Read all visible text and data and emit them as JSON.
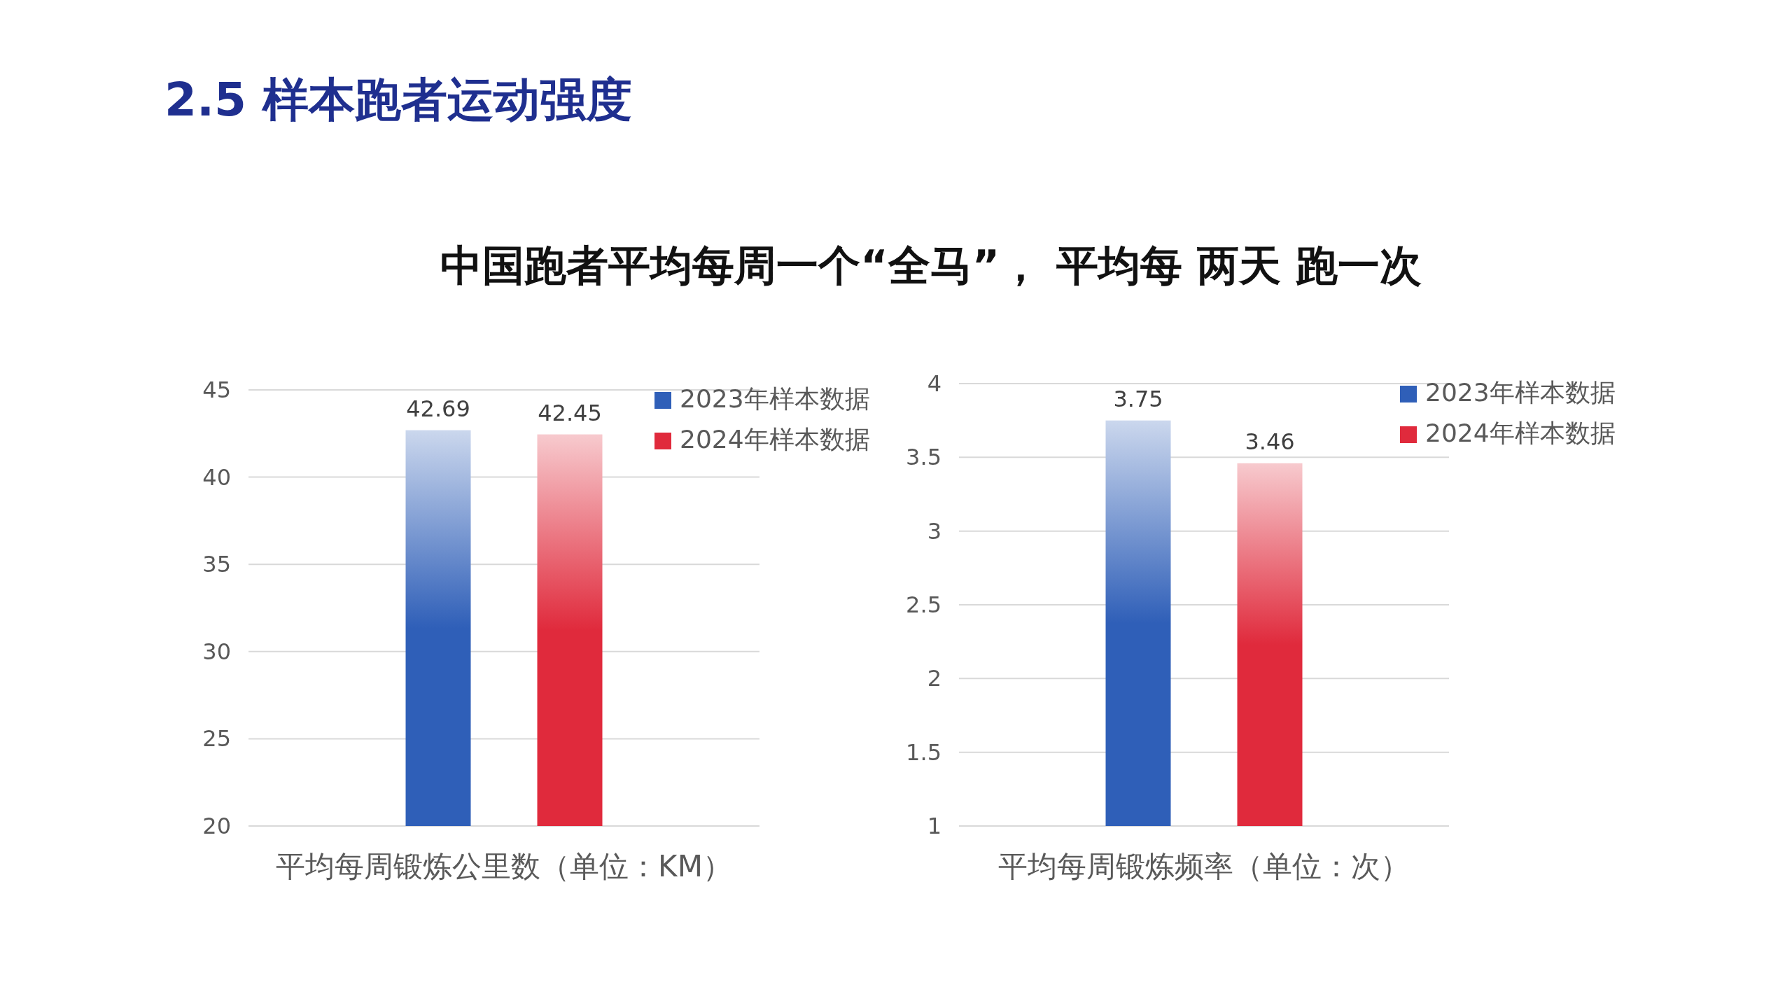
{
  "chart_data": [
    {
      "type": "bar",
      "title": "2.5 样本跑者运动强度",
      "subtitle": "中国跑者平均每周一个“全马”， 平均每 两天 跑一次",
      "categories": [
        "平均每周锻炼公里数（单位：KM）"
      ],
      "series": [
        {
          "name": "2023年样本数据",
          "color": "#2f5fb8",
          "values": [
            42.69
          ]
        },
        {
          "name": "2024年样本数据",
          "color": "#e02a3c",
          "values": [
            42.45
          ]
        }
      ],
      "ylim": [
        20,
        45
      ],
      "yticks": [
        20,
        25,
        30,
        35,
        40,
        45
      ],
      "grid": "y",
      "legend": "top right",
      "data_labels": true
    },
    {
      "type": "bar",
      "categories": [
        "平均每周锻炼频率（单位：次）"
      ],
      "series": [
        {
          "name": "2023年样本数据",
          "color": "#2f5fb8",
          "values": [
            3.75
          ]
        },
        {
          "name": "2024年样本数据",
          "color": "#e02a3c",
          "values": [
            3.46
          ]
        }
      ],
      "ylim": [
        1,
        4
      ],
      "yticks": [
        1,
        1.5,
        2,
        2.5,
        3,
        3.5,
        4
      ],
      "grid": "y",
      "legend": "top right",
      "data_labels": true
    }
  ]
}
